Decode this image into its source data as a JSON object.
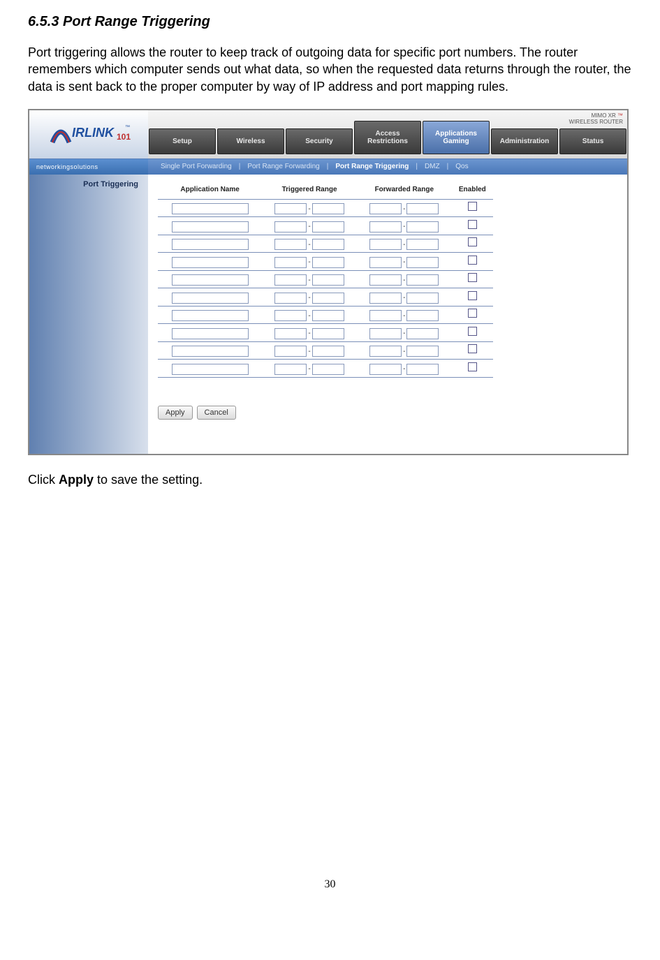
{
  "heading": "6.5.3 Port Range Triggering",
  "intro": "Port triggering allows the router to keep track of outgoing data for specific port numbers. The router remembers which computer sends out what data, so when the requested data returns through the router, the data is sent back to the proper computer by way of IP address and port mapping rules.",
  "logo_tagline": "networkingsolutions",
  "badge_line1": "MIMO XR",
  "badge_line2": "WIRELESS ROUTER",
  "tabs": {
    "t0": "Setup",
    "t1": "Wireless",
    "t2": "Security",
    "t3": "Access Restrictions",
    "t4": "Applications Gaming",
    "t5": "Administration",
    "t6": "Status"
  },
  "subtabs": {
    "s0": "Single Port Forwarding",
    "s1": "Port Range Forwarding",
    "s2": "Port Range Triggering",
    "s3": "DMZ",
    "s4": "Qos"
  },
  "side_title": "Port Triggering",
  "columns": {
    "c0": "Application Name",
    "c1": "Triggered Range",
    "c2": "Forwarded Range",
    "c3": "Enabled"
  },
  "rows": 10,
  "buttons": {
    "apply": "Apply",
    "cancel": "Cancel"
  },
  "post_prefix": "Click ",
  "post_bold": "Apply",
  "post_suffix": " to save the setting.",
  "page_number": "30"
}
